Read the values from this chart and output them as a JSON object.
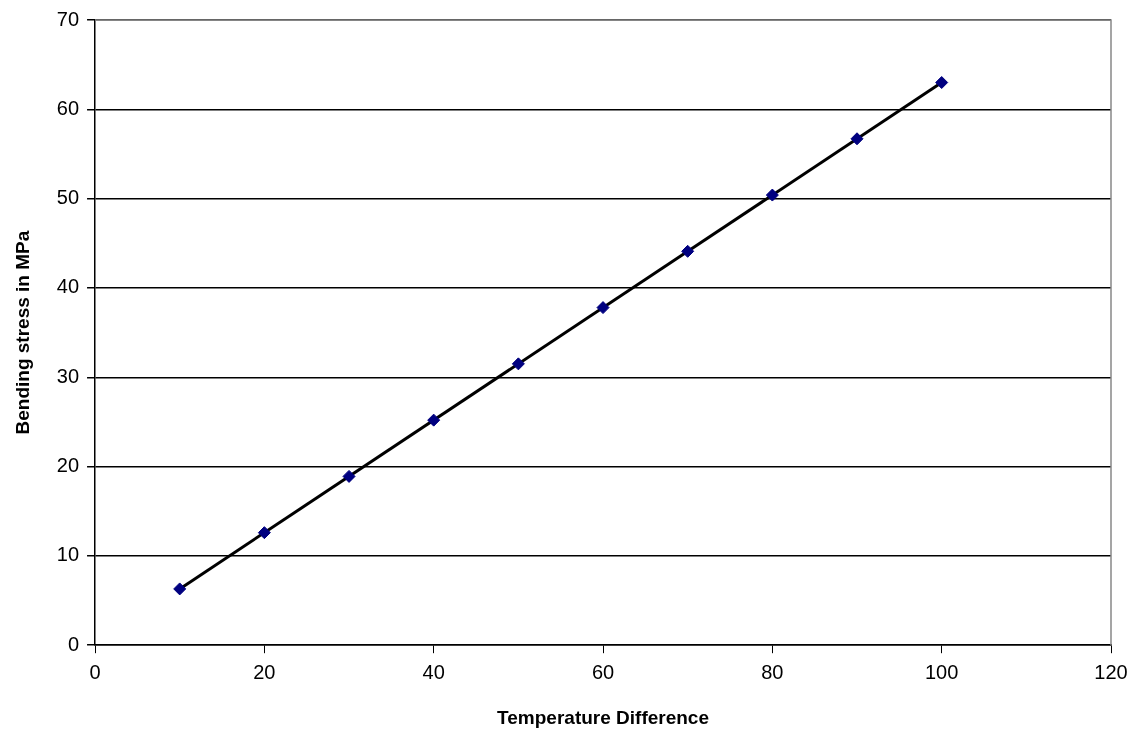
{
  "chart_data": {
    "type": "scatter",
    "xlabel": "Temperature Difference",
    "ylabel": "Bending stress in MPa",
    "x": [
      10,
      20,
      30,
      40,
      50,
      60,
      70,
      80,
      90,
      100
    ],
    "series": [
      {
        "type": "scatter",
        "color": "#000080",
        "marker": "diamond",
        "values": [
          6.3,
          12.6,
          18.9,
          25.2,
          31.5,
          37.8,
          44.1,
          50.4,
          56.7,
          63.0
        ]
      },
      {
        "type": "line",
        "color": "#000000",
        "marker": "none",
        "x": [
          10,
          100
        ],
        "values": [
          6.3,
          63.0
        ]
      }
    ],
    "xlim": [
      0,
      120
    ],
    "xticks": [
      0,
      20,
      40,
      60,
      80,
      100,
      120
    ],
    "ylim": [
      0,
      70
    ],
    "yticks": [
      0,
      10,
      20,
      30,
      40,
      50,
      60,
      70
    ],
    "grid": "y",
    "legend": false
  }
}
